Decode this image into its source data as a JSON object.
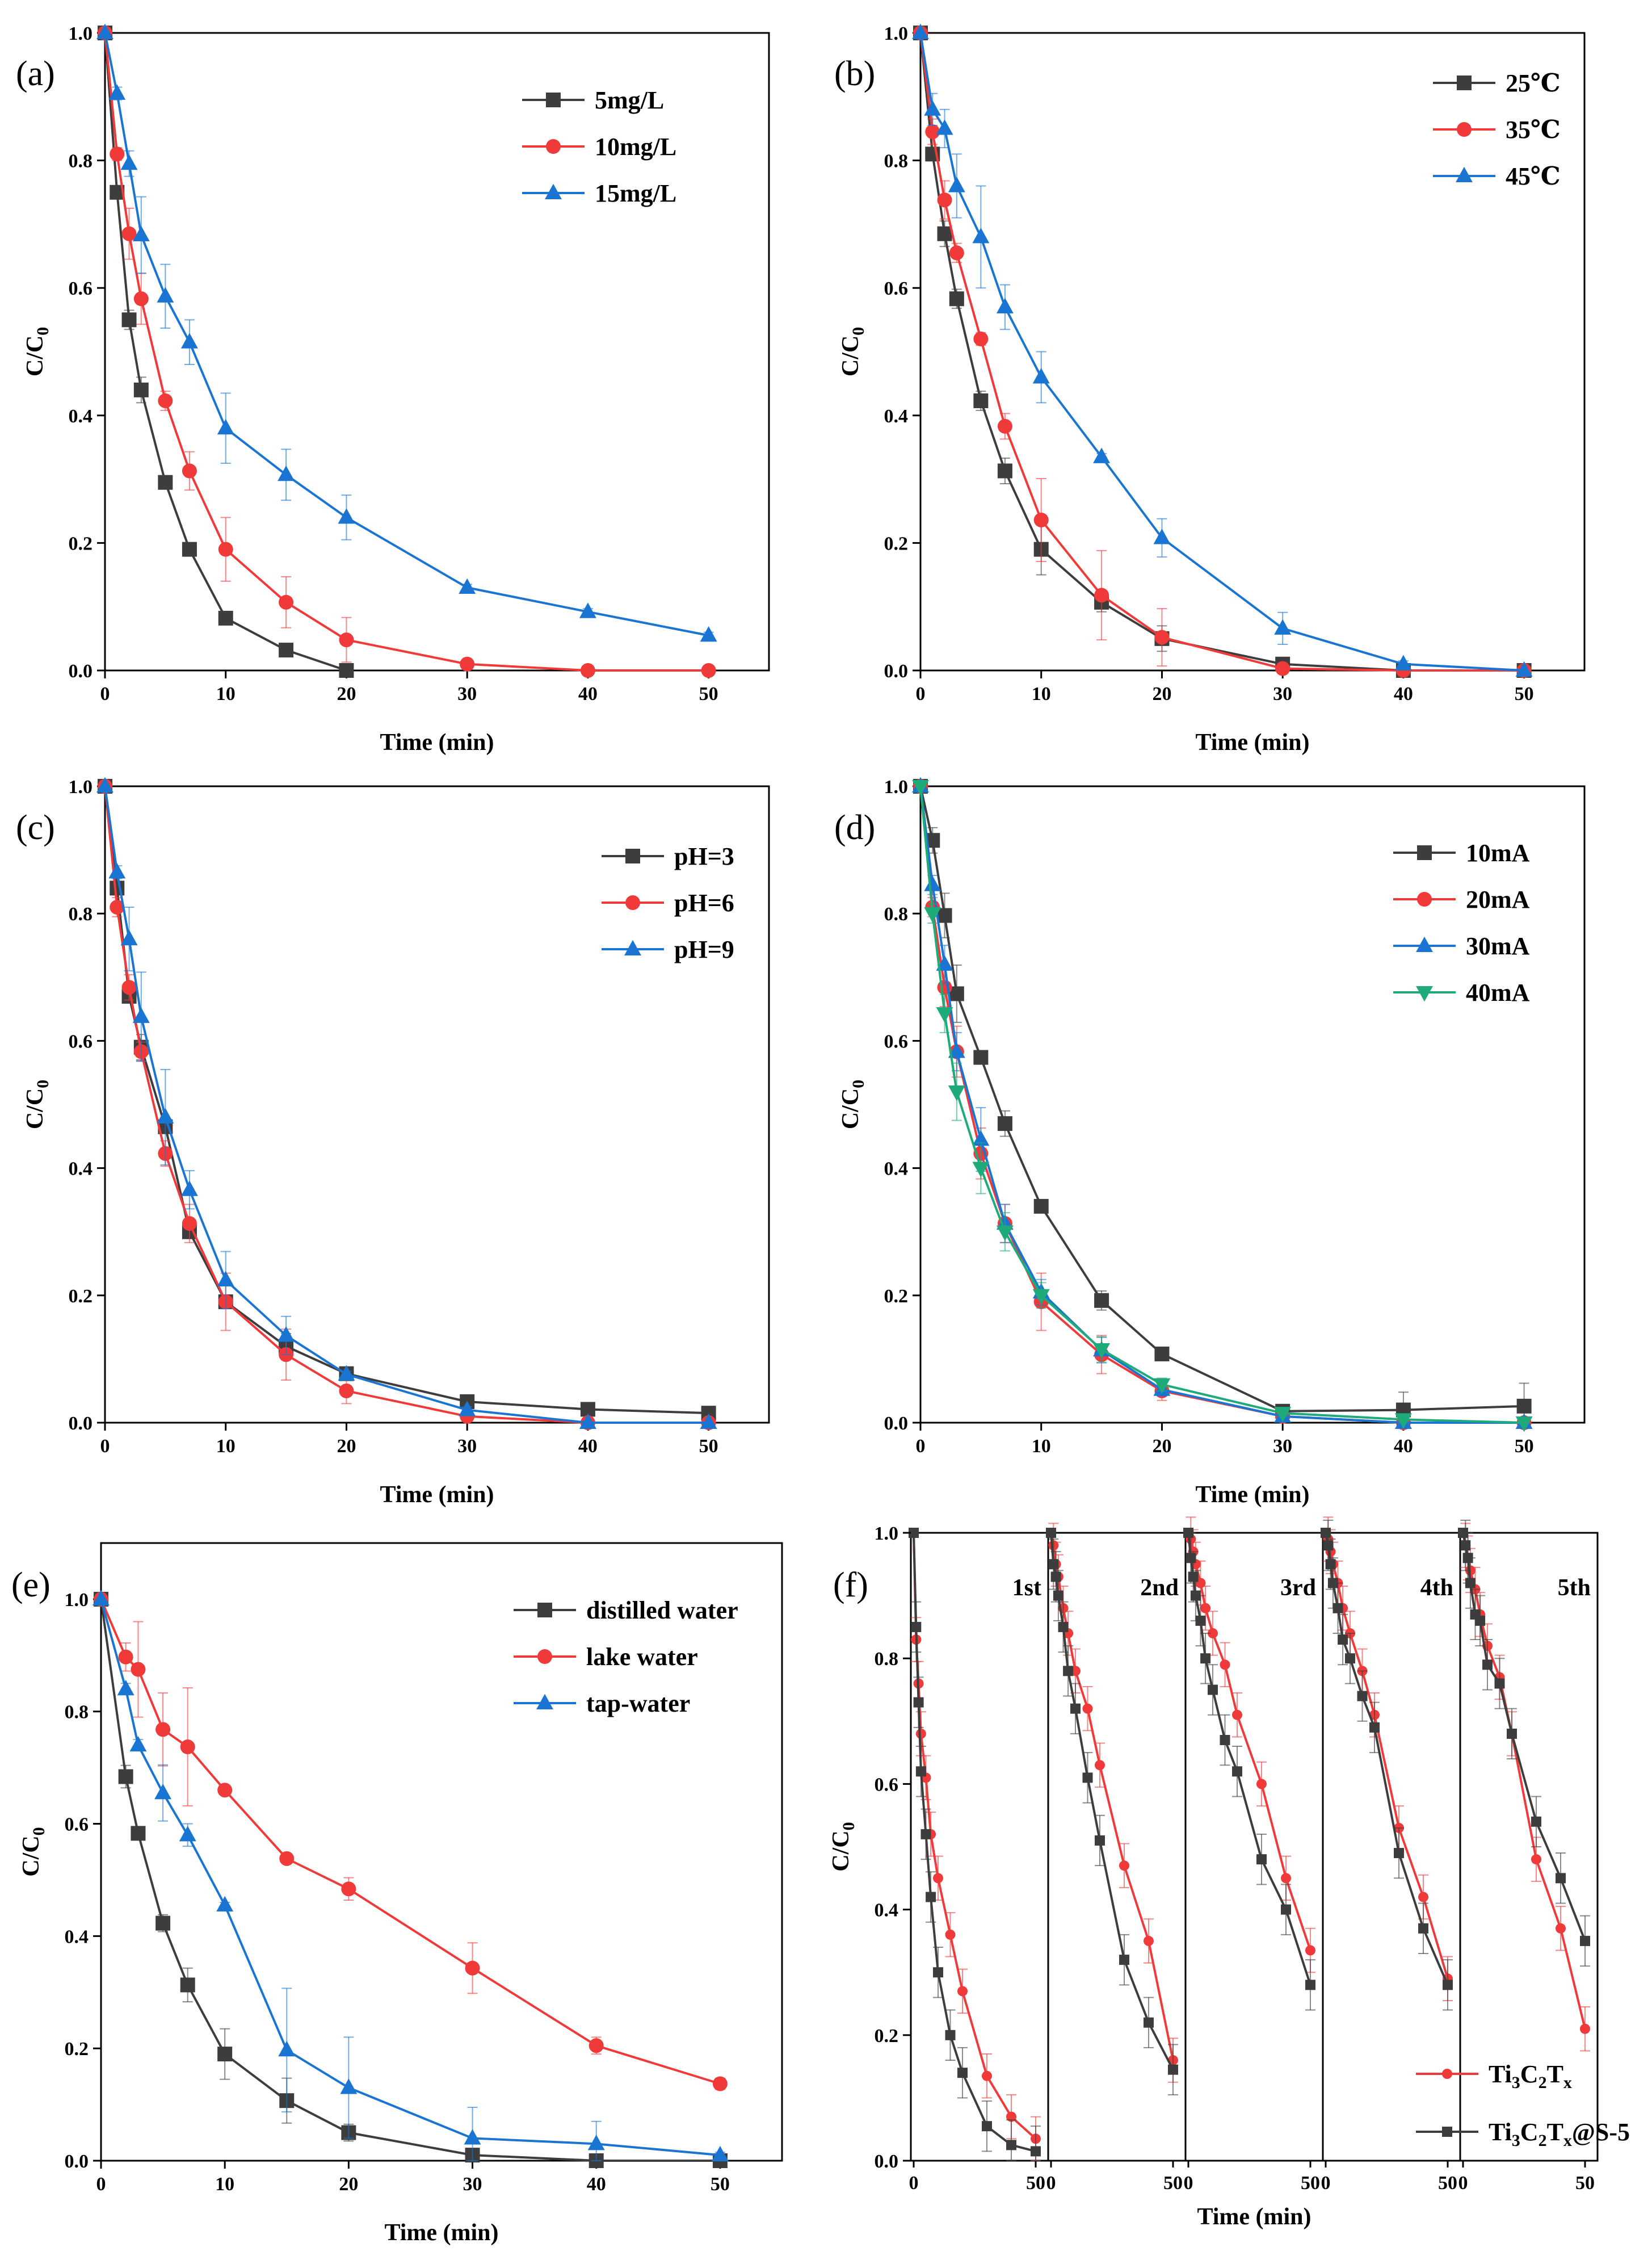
{
  "colors": {
    "black": "#3d3d3d",
    "red": "#f03a3a",
    "blue": "#1a75d2",
    "green": "#1faa7a"
  },
  "chart_data": [
    {
      "panel": "(a)",
      "type": "line",
      "xlabel": "Time (min)",
      "ylabel": "C/C0",
      "xlim": [
        0,
        55
      ],
      "ylim": [
        0,
        1.0
      ],
      "xticks": [
        0,
        10,
        20,
        30,
        40,
        50
      ],
      "yticks": [
        0.0,
        0.2,
        0.4,
        0.6,
        0.8,
        1.0
      ],
      "legend_position": "top-right",
      "series": [
        {
          "name": "5mg/L",
          "color": "#3d3d3d",
          "marker": "square",
          "x": [
            0,
            1,
            2,
            3,
            5,
            7,
            10,
            15,
            20
          ],
          "y": [
            1.0,
            0.75,
            0.55,
            0.44,
            0.295,
            0.19,
            0.082,
            0.032,
            0.0
          ],
          "err": [
            0,
            0.01,
            0.015,
            0.02,
            0.01,
            0.01,
            0.008,
            0.006,
            0.004
          ]
        },
        {
          "name": "10mg/L",
          "color": "#f03a3a",
          "marker": "circle",
          "x": [
            0,
            1,
            2,
            3,
            5,
            7,
            10,
            15,
            20,
            30,
            40,
            50
          ],
          "y": [
            1.0,
            0.81,
            0.685,
            0.583,
            0.423,
            0.313,
            0.19,
            0.107,
            0.048,
            0.01,
            0.0,
            0.0
          ],
          "err": [
            0,
            0.01,
            0.04,
            0.04,
            0.015,
            0.03,
            0.05,
            0.04,
            0.035,
            0.005,
            0,
            0
          ]
        },
        {
          "name": "15mg/L",
          "color": "#1a75d2",
          "marker": "triangle",
          "x": [
            0,
            1,
            2,
            3,
            5,
            7,
            10,
            15,
            20,
            30,
            40,
            50
          ],
          "y": [
            1.0,
            0.905,
            0.795,
            0.683,
            0.587,
            0.515,
            0.38,
            0.307,
            0.24,
            0.13,
            0.092,
            0.055
          ],
          "err": [
            0,
            0.01,
            0.02,
            0.06,
            0.05,
            0.035,
            0.055,
            0.04,
            0.035,
            0.005,
            0.005,
            0.005
          ]
        }
      ]
    },
    {
      "panel": "(b)",
      "type": "line",
      "xlabel": "Time (min)",
      "ylabel": "C/C0",
      "xlim": [
        0,
        55
      ],
      "ylim": [
        0,
        1.0
      ],
      "xticks": [
        0,
        10,
        20,
        30,
        40,
        50
      ],
      "yticks": [
        0.0,
        0.2,
        0.4,
        0.6,
        0.8,
        1.0
      ],
      "legend_position": "top-right",
      "series": [
        {
          "name": "25℃",
          "color": "#3d3d3d",
          "marker": "square",
          "x": [
            0,
            1,
            2,
            3,
            5,
            7,
            10,
            15,
            20,
            30,
            40,
            50
          ],
          "y": [
            1.0,
            0.81,
            0.685,
            0.583,
            0.423,
            0.313,
            0.19,
            0.107,
            0.05,
            0.01,
            0.0,
            0.0
          ],
          "err": [
            0,
            0.01,
            0.02,
            0.015,
            0.015,
            0.02,
            0.04,
            0.015,
            0.02,
            0.005,
            0,
            0
          ]
        },
        {
          "name": "35℃",
          "color": "#f03a3a",
          "marker": "circle",
          "x": [
            0,
            1,
            2,
            3,
            5,
            7,
            10,
            15,
            20,
            30,
            40,
            50
          ],
          "y": [
            1.0,
            0.845,
            0.738,
            0.655,
            0.52,
            0.383,
            0.236,
            0.118,
            0.052,
            0.003,
            0.0,
            0.0
          ],
          "err": [
            0,
            0.02,
            0.03,
            0.015,
            0.01,
            0.02,
            0.065,
            0.07,
            0.045,
            0.003,
            0,
            0
          ]
        },
        {
          "name": "45℃",
          "color": "#1a75d2",
          "marker": "triangle",
          "x": [
            0,
            1,
            2,
            3,
            5,
            7,
            10,
            15,
            20,
            30,
            40,
            50
          ],
          "y": [
            1.0,
            0.88,
            0.85,
            0.76,
            0.68,
            0.57,
            0.46,
            0.335,
            0.208,
            0.066,
            0.01,
            0.0
          ],
          "err": [
            0,
            0.025,
            0.03,
            0.05,
            0.08,
            0.035,
            0.04,
            0.005,
            0.03,
            0.025,
            0.005,
            0
          ]
        }
      ]
    },
    {
      "panel": "(c)",
      "type": "line",
      "xlabel": "Time (min)",
      "ylabel": "C/C0",
      "xlim": [
        0,
        55
      ],
      "ylim": [
        0,
        1.0
      ],
      "xticks": [
        0,
        10,
        20,
        30,
        40,
        50
      ],
      "yticks": [
        0.0,
        0.2,
        0.4,
        0.6,
        0.8,
        1.0
      ],
      "legend_position": "top-right",
      "series": [
        {
          "name": "pH=3",
          "color": "#3d3d3d",
          "marker": "square",
          "x": [
            0,
            1,
            2,
            3,
            5,
            7,
            10,
            15,
            20,
            30,
            40,
            50
          ],
          "y": [
            1.0,
            0.84,
            0.67,
            0.59,
            0.465,
            0.3,
            0.19,
            0.12,
            0.077,
            0.033,
            0.021,
            0.015
          ],
          "err": [
            0,
            0.01,
            0.01,
            0.02,
            0.01,
            0.01,
            0.01,
            0.02,
            0.01,
            0.005,
            0.005,
            0.005
          ]
        },
        {
          "name": "pH=6",
          "color": "#f03a3a",
          "marker": "circle",
          "x": [
            0,
            1,
            2,
            3,
            5,
            7,
            10,
            15,
            20,
            30,
            40,
            50
          ],
          "y": [
            1.0,
            0.81,
            0.684,
            0.583,
            0.423,
            0.313,
            0.19,
            0.107,
            0.05,
            0.01,
            0.0,
            0.0
          ],
          "err": [
            0,
            0.015,
            0.02,
            0.015,
            0.02,
            0.03,
            0.045,
            0.04,
            0.02,
            0.005,
            0,
            0
          ]
        },
        {
          "name": "pH=9",
          "color": "#1a75d2",
          "marker": "triangle",
          "x": [
            0,
            1,
            2,
            3,
            5,
            7,
            10,
            15,
            20,
            30,
            40,
            50
          ],
          "y": [
            1.0,
            0.865,
            0.76,
            0.638,
            0.48,
            0.366,
            0.224,
            0.137,
            0.076,
            0.02,
            0.0,
            0.0
          ],
          "err": [
            0,
            0.01,
            0.05,
            0.07,
            0.075,
            0.03,
            0.045,
            0.03,
            0.005,
            0.005,
            0,
            0
          ]
        }
      ]
    },
    {
      "panel": "(d)",
      "type": "line",
      "xlabel": "Time (min)",
      "ylabel": "C/C0",
      "xlim": [
        0,
        55
      ],
      "ylim": [
        0,
        1.0
      ],
      "xticks": [
        0,
        10,
        20,
        30,
        40,
        50
      ],
      "yticks": [
        0.0,
        0.2,
        0.4,
        0.6,
        0.8,
        1.0
      ],
      "legend_position": "top-right",
      "series": [
        {
          "name": "10mA",
          "color": "#3d3d3d",
          "marker": "square",
          "x": [
            0,
            1,
            2,
            3,
            5,
            7,
            10,
            15,
            20,
            30,
            40,
            50
          ],
          "y": [
            1.0,
            0.915,
            0.797,
            0.674,
            0.574,
            0.47,
            0.34,
            0.192,
            0.108,
            0.018,
            0.02,
            0.026
          ],
          "err": [
            0,
            0.02,
            0.035,
            0.045,
            0.01,
            0.02,
            0.01,
            0.015,
            0.005,
            0.005,
            0.028,
            0.036
          ]
        },
        {
          "name": "20mA",
          "color": "#f03a3a",
          "marker": "circle",
          "x": [
            0,
            1,
            2,
            3,
            5,
            7,
            10,
            15,
            20,
            30,
            40,
            50
          ],
          "y": [
            1.0,
            0.81,
            0.684,
            0.583,
            0.423,
            0.313,
            0.19,
            0.107,
            0.05,
            0.01,
            0.0,
            0.0
          ],
          "err": [
            0,
            0.015,
            0.03,
            0.04,
            0.04,
            0.03,
            0.045,
            0.03,
            0.015,
            0.005,
            0,
            0
          ]
        },
        {
          "name": "30mA",
          "color": "#1a75d2",
          "marker": "triangle",
          "x": [
            0,
            1,
            2,
            3,
            5,
            7,
            10,
            15,
            20,
            30,
            40,
            50
          ],
          "y": [
            1.0,
            0.845,
            0.72,
            0.583,
            0.445,
            0.313,
            0.205,
            0.114,
            0.052,
            0.01,
            0.0,
            0.0
          ],
          "err": [
            0,
            0.015,
            0.03,
            0.03,
            0.05,
            0.03,
            0.02,
            0.02,
            0.01,
            0.005,
            0,
            0
          ]
        },
        {
          "name": "40mA",
          "color": "#1faa7a",
          "marker": "triangle-down",
          "x": [
            0,
            1,
            2,
            3,
            5,
            7,
            10,
            15,
            20,
            30,
            40,
            50
          ],
          "y": [
            1.0,
            0.8,
            0.643,
            0.52,
            0.4,
            0.3,
            0.2,
            0.115,
            0.06,
            0.015,
            0.005,
            0.0
          ],
          "err": [
            0,
            0.015,
            0.03,
            0.045,
            0.04,
            0.03,
            0.02,
            0.02,
            0.01,
            0.005,
            0.005,
            0
          ]
        }
      ]
    },
    {
      "panel": "(e)",
      "type": "line",
      "xlabel": "Time (min)",
      "ylabel": "C/C0",
      "xlim": [
        0,
        55
      ],
      "ylim": [
        0,
        1.1
      ],
      "xticks": [
        0,
        10,
        20,
        30,
        40,
        50
      ],
      "yticks": [
        0.0,
        0.2,
        0.4,
        0.6,
        0.8,
        1.0
      ],
      "legend_position": "top-right",
      "series": [
        {
          "name": "distilled water",
          "color": "#3d3d3d",
          "marker": "square",
          "x": [
            0,
            2,
            3,
            5,
            7,
            10,
            15,
            20,
            30,
            40,
            50
          ],
          "y": [
            1.0,
            0.684,
            0.583,
            0.423,
            0.313,
            0.19,
            0.107,
            0.05,
            0.01,
            0.0,
            0.0
          ],
          "err": [
            0,
            0.02,
            0.01,
            0.015,
            0.03,
            0.045,
            0.04,
            0.015,
            0.005,
            0,
            0
          ]
        },
        {
          "name": "lake water",
          "color": "#f03a3a",
          "marker": "circle",
          "x": [
            0,
            2,
            3,
            5,
            7,
            10,
            15,
            20,
            30,
            40,
            50
          ],
          "y": [
            1.0,
            0.897,
            0.875,
            0.768,
            0.737,
            0.66,
            0.538,
            0.484,
            0.343,
            0.205,
            0.137
          ],
          "err": [
            0,
            0.025,
            0.085,
            0.065,
            0.105,
            0.005,
            0.005,
            0.02,
            0.045,
            0.015,
            0.01
          ]
        },
        {
          "name": "tap-water",
          "color": "#1a75d2",
          "marker": "triangle",
          "x": [
            0,
            2,
            3,
            5,
            7,
            10,
            15,
            20,
            30,
            40,
            50
          ],
          "y": [
            1.0,
            0.84,
            0.74,
            0.655,
            0.58,
            0.455,
            0.197,
            0.13,
            0.04,
            0.03,
            0.01
          ],
          "err": [
            0,
            0.01,
            0.01,
            0.05,
            0.02,
            0.005,
            0.11,
            0.09,
            0.055,
            0.04,
            0.005
          ]
        }
      ]
    },
    {
      "panel": "(f)",
      "type": "line",
      "xlabel": "Time (min)",
      "ylabel": "C/C0",
      "ylim": [
        0,
        1.0
      ],
      "yticks": [
        0.0,
        0.2,
        0.4,
        0.6,
        0.8,
        1.0
      ],
      "cycles": [
        "1st",
        "2nd",
        "3rd",
        "4th",
        "5th"
      ],
      "cycle_xticks": [
        "0",
        "50"
      ],
      "legend_position": "bottom-right",
      "series": [
        {
          "name": "Ti3C2Tx",
          "color": "#f03a3a",
          "marker": "small-circle",
          "x": [
            0,
            1,
            2,
            3,
            5,
            7,
            10,
            15,
            20,
            30,
            40,
            50
          ],
          "cycles_y": [
            [
              1.0,
              0.83,
              0.76,
              0.68,
              0.61,
              0.52,
              0.45,
              0.36,
              0.27,
              0.135,
              0.07,
              0.035
            ],
            [
              1.0,
              0.98,
              0.95,
              0.93,
              0.88,
              0.84,
              0.78,
              0.72,
              0.63,
              0.47,
              0.35,
              0.16
            ],
            [
              1.0,
              0.99,
              0.97,
              0.95,
              0.92,
              0.88,
              0.84,
              0.79,
              0.71,
              0.6,
              0.45,
              0.335
            ],
            [
              1.0,
              0.99,
              0.97,
              0.95,
              0.92,
              0.88,
              0.84,
              0.78,
              0.71,
              0.53,
              0.42,
              0.29
            ],
            [
              1.0,
              0.98,
              0.96,
              0.94,
              0.91,
              0.87,
              0.82,
              0.77,
              0.68,
              0.48,
              0.37,
              0.21
            ]
          ]
        },
        {
          "name": "Ti3C2Tx@S-5",
          "color": "#3d3d3d",
          "marker": "small-square",
          "x": [
            0,
            1,
            2,
            3,
            5,
            7,
            10,
            15,
            20,
            30,
            40,
            50
          ],
          "cycles_y": [
            [
              1.0,
              0.85,
              0.73,
              0.62,
              0.52,
              0.42,
              0.3,
              0.2,
              0.14,
              0.055,
              0.025,
              0.015
            ],
            [
              1.0,
              0.95,
              0.93,
              0.9,
              0.85,
              0.78,
              0.72,
              0.61,
              0.51,
              0.32,
              0.22,
              0.145
            ],
            [
              1.0,
              0.96,
              0.93,
              0.9,
              0.86,
              0.8,
              0.75,
              0.67,
              0.62,
              0.48,
              0.4,
              0.28
            ],
            [
              1.0,
              0.98,
              0.95,
              0.92,
              0.88,
              0.83,
              0.8,
              0.74,
              0.69,
              0.49,
              0.37,
              0.28
            ],
            [
              1.0,
              0.98,
              0.96,
              0.92,
              0.87,
              0.86,
              0.79,
              0.76,
              0.68,
              0.54,
              0.45,
              0.35
            ]
          ]
        }
      ]
    }
  ]
}
